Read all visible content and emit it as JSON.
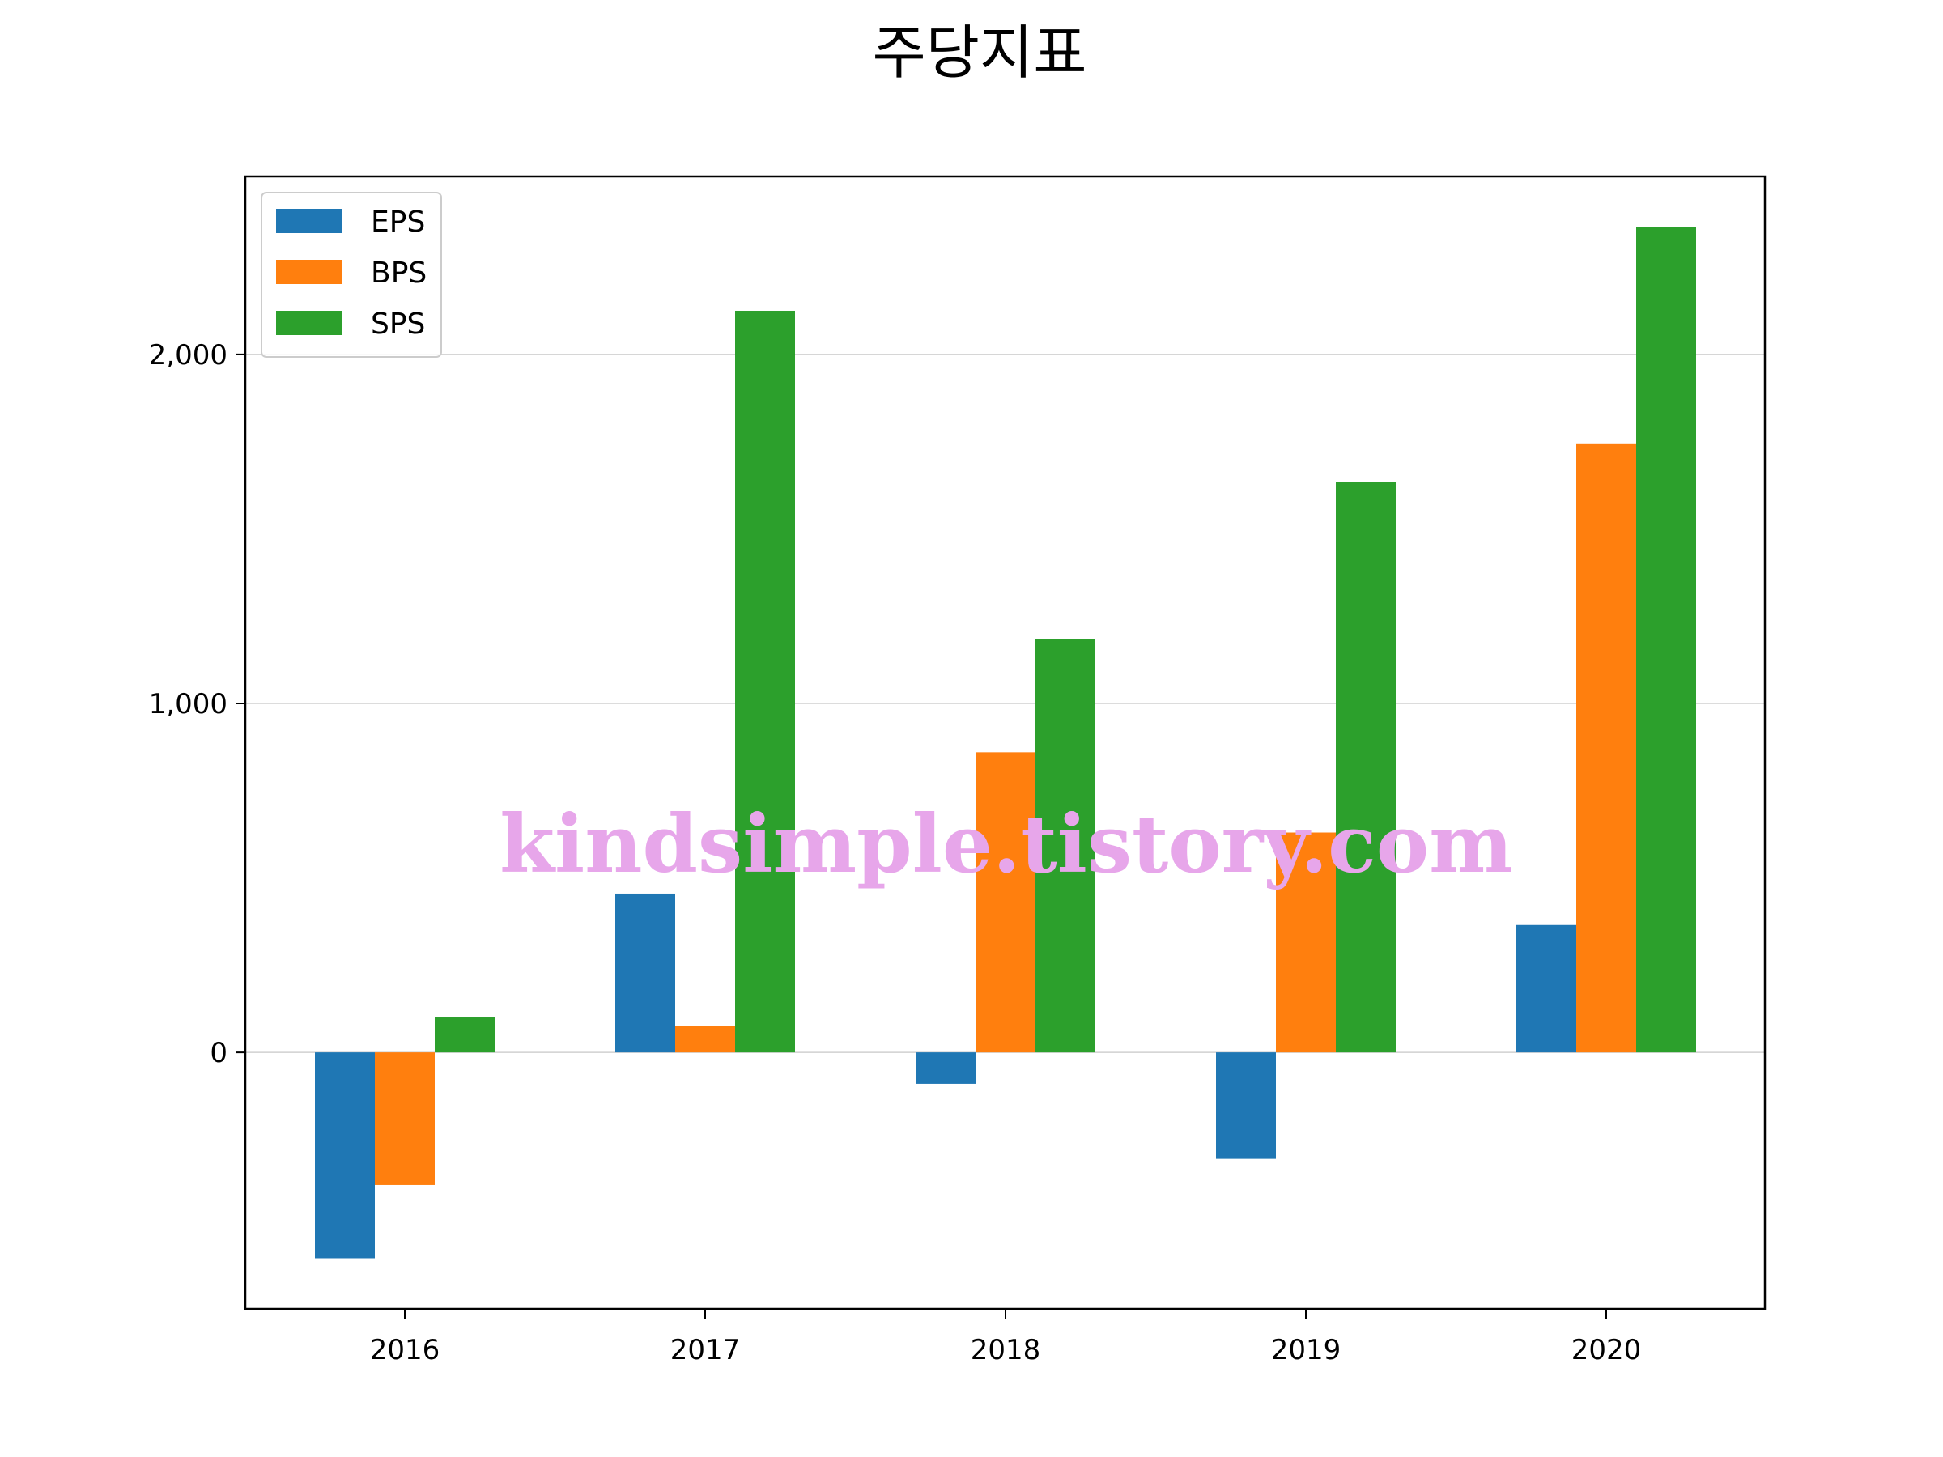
{
  "chart_data": {
    "type": "bar",
    "title": "주당지표",
    "xlabel": "",
    "ylabel": "",
    "categories": [
      "2016",
      "2017",
      "2018",
      "2019",
      "2020"
    ],
    "series": [
      {
        "name": "EPS",
        "color": "#1f77b4",
        "values": [
          -590,
          455,
          -90,
          -305,
          365
        ]
      },
      {
        "name": "BPS",
        "color": "#ff7f0e",
        "values": [
          -380,
          75,
          860,
          630,
          1745
        ]
      },
      {
        "name": "SPS",
        "color": "#2ca02c",
        "values": [
          100,
          2125,
          1185,
          1635,
          2365
        ]
      }
    ],
    "ylim": [
      -735,
      2510
    ],
    "yticks": [
      0,
      1000,
      2000
    ],
    "ytick_labels": [
      "0",
      "1,000",
      "2,000"
    ],
    "grid": "horizontal",
    "legend_position": "top-left",
    "watermark": "kindsimple.tistory.com"
  }
}
